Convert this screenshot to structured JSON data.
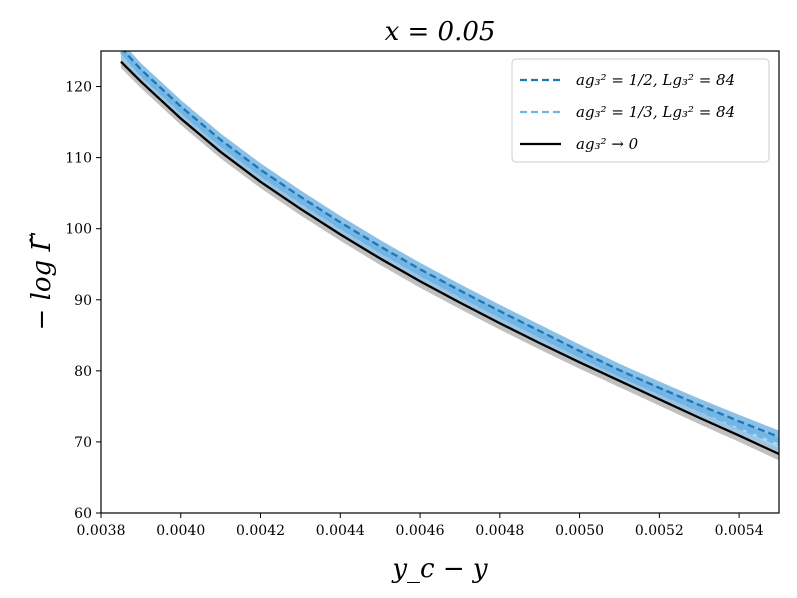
{
  "chart_data": {
    "type": "line",
    "title": "x = 0.05",
    "xlabel": "y_c − y",
    "ylabel": "− log Γ̃",
    "xlim": [
      0.0038,
      0.0055
    ],
    "ylim": [
      60,
      125
    ],
    "xticks": [
      "0.0038",
      "0.0040",
      "0.0042",
      "0.0044",
      "0.0046",
      "0.0048",
      "0.0050",
      "0.0052",
      "0.0054"
    ],
    "yticks": [
      "60",
      "70",
      "80",
      "90",
      "100",
      "110",
      "120"
    ],
    "grid": false,
    "legend_position": "top-right",
    "series": [
      {
        "name": "ag₃² = 1/2,  Lg₃² = 84",
        "style": "dashed",
        "color": "#1f77b4",
        "band_color": "#5aa7dd",
        "x": [
          0.00385,
          0.0039,
          0.004,
          0.0041,
          0.0042,
          0.0043,
          0.0044,
          0.0045,
          0.0046,
          0.0047,
          0.0048,
          0.0049,
          0.005,
          0.0051,
          0.0052,
          0.0053,
          0.0054,
          0.0055
        ],
        "y": [
          125.5,
          122.4,
          117.2,
          112.5,
          108.3,
          104.5,
          100.9,
          97.5,
          94.3,
          91.3,
          88.4,
          85.6,
          82.8,
          80.1,
          77.6,
          75.2,
          72.9,
          70.7
        ]
      },
      {
        "name": "ag₃² = 1/3,  Lg₃² = 84",
        "style": "dashed",
        "color": "#6fb5e8",
        "band_color": "#8ec6ee",
        "x": [
          0.00385,
          0.0039,
          0.004,
          0.0041,
          0.0042,
          0.0043,
          0.0044,
          0.0045,
          0.0046,
          0.0047,
          0.0048,
          0.0049,
          0.005,
          0.0051,
          0.0052,
          0.0053,
          0.0054,
          0.0055
        ],
        "y": [
          124.8,
          121.6,
          116.4,
          111.7,
          107.5,
          103.7,
          100.1,
          96.7,
          93.5,
          90.5,
          87.6,
          84.8,
          82.0,
          79.3,
          76.8,
          74.4,
          71.9,
          69.6
        ]
      },
      {
        "name": "ag₃² → 0",
        "style": "solid",
        "color": "#000000",
        "band_color": "#b5b5b5",
        "x": [
          0.00385,
          0.0039,
          0.004,
          0.0041,
          0.0042,
          0.0043,
          0.0044,
          0.0045,
          0.0046,
          0.0047,
          0.0048,
          0.0049,
          0.005,
          0.0051,
          0.0052,
          0.0053,
          0.0054,
          0.0055
        ],
        "y": [
          123.5,
          120.7,
          115.5,
          110.8,
          106.6,
          102.8,
          99.2,
          95.8,
          92.6,
          89.6,
          86.7,
          83.9,
          81.2,
          78.6,
          76.0,
          73.4,
          70.9,
          68.3
        ]
      }
    ]
  }
}
